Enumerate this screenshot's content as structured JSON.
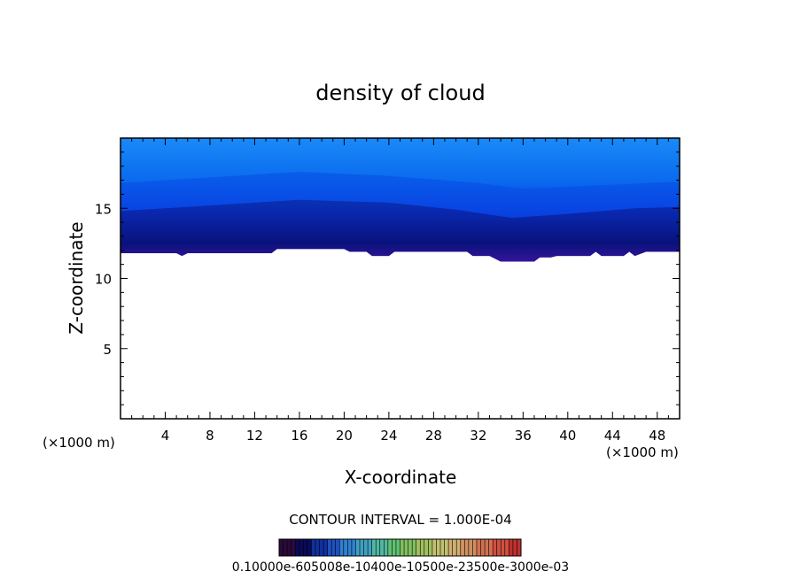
{
  "chart_data": {
    "type": "heatmap",
    "title": "density of cloud",
    "xlabel": "X-coordinate",
    "ylabel": "Z-coordinate",
    "x_unit_left": "(×1000 m)",
    "x_unit_right": "(×1000 m)",
    "xlim": [
      0,
      50
    ],
    "ylim": [
      0,
      20
    ],
    "x_ticks": [
      4,
      8,
      12,
      16,
      20,
      24,
      28,
      32,
      36,
      40,
      44,
      48
    ],
    "x_tick_labels": [
      "4",
      "8",
      "12",
      "16",
      "20",
      "24",
      "28",
      "32",
      "36",
      "40",
      "44",
      "48"
    ],
    "y_ticks": [
      5,
      10,
      15
    ],
    "y_tick_labels": [
      "5",
      "10",
      "15"
    ],
    "contour_interval_label": "CONTOUR INTERVAL = 1.000E-04",
    "colorbar_labels_text": "0.10000e-605008e-10400e-10500e-23500e-3000e-03",
    "colorbar_min": 0.0001,
    "colorbar_max": 0.003,
    "colorbar_colors": [
      "#2a0a3a",
      "#0a0a5a",
      "#1030a0",
      "#2050c0",
      "#3080d0",
      "#40a0c0",
      "#50b8a0",
      "#60c070",
      "#80c060",
      "#a0c060",
      "#c0c070",
      "#d0b070",
      "#d09060",
      "#d07050",
      "#d05040",
      "#c03030"
    ],
    "field_colors": {
      "cloud_base": "#6a0fb0",
      "dense": "#0a0a6a",
      "mid": "#0a3adc",
      "upper": "#0a6aee",
      "top": "#1a8af8"
    },
    "cloud_base_z": [
      {
        "x": 0,
        "z": 11.8
      },
      {
        "x": 5,
        "z": 11.8
      },
      {
        "x": 5.5,
        "z": 11.6
      },
      {
        "x": 6,
        "z": 11.8
      },
      {
        "x": 13.5,
        "z": 11.8
      },
      {
        "x": 14,
        "z": 12.1
      },
      {
        "x": 20,
        "z": 12.1
      },
      {
        "x": 20.5,
        "z": 11.9
      },
      {
        "x": 22,
        "z": 11.9
      },
      {
        "x": 22.5,
        "z": 11.6
      },
      {
        "x": 24,
        "z": 11.6
      },
      {
        "x": 24.5,
        "z": 11.9
      },
      {
        "x": 31,
        "z": 11.9
      },
      {
        "x": 31.5,
        "z": 11.6
      },
      {
        "x": 33,
        "z": 11.6
      },
      {
        "x": 34,
        "z": 11.2
      },
      {
        "x": 37,
        "z": 11.2
      },
      {
        "x": 37.5,
        "z": 11.5
      },
      {
        "x": 38.5,
        "z": 11.5
      },
      {
        "x": 39,
        "z": 11.6
      },
      {
        "x": 42,
        "z": 11.6
      },
      {
        "x": 42.5,
        "z": 11.9
      },
      {
        "x": 43,
        "z": 11.6
      },
      {
        "x": 45,
        "z": 11.6
      },
      {
        "x": 45.5,
        "z": 11.9
      },
      {
        "x": 46,
        "z": 11.6
      },
      {
        "x": 47,
        "z": 11.9
      },
      {
        "x": 50,
        "z": 11.9
      }
    ],
    "dense_layer_top_z": [
      {
        "x": 0,
        "z": 14.8
      },
      {
        "x": 8,
        "z": 15.2
      },
      {
        "x": 16,
        "z": 15.6
      },
      {
        "x": 24,
        "z": 15.4
      },
      {
        "x": 30,
        "z": 14.9
      },
      {
        "x": 35,
        "z": 14.3
      },
      {
        "x": 40,
        "z": 14.6
      },
      {
        "x": 46,
        "z": 15.0
      },
      {
        "x": 50,
        "z": 15.1
      }
    ],
    "mid_layer_top_z": [
      {
        "x": 0,
        "z": 16.8
      },
      {
        "x": 8,
        "z": 17.2
      },
      {
        "x": 16,
        "z": 17.6
      },
      {
        "x": 24,
        "z": 17.3
      },
      {
        "x": 32,
        "z": 16.8
      },
      {
        "x": 36,
        "z": 16.4
      },
      {
        "x": 42,
        "z": 16.6
      },
      {
        "x": 50,
        "z": 16.9
      }
    ]
  }
}
